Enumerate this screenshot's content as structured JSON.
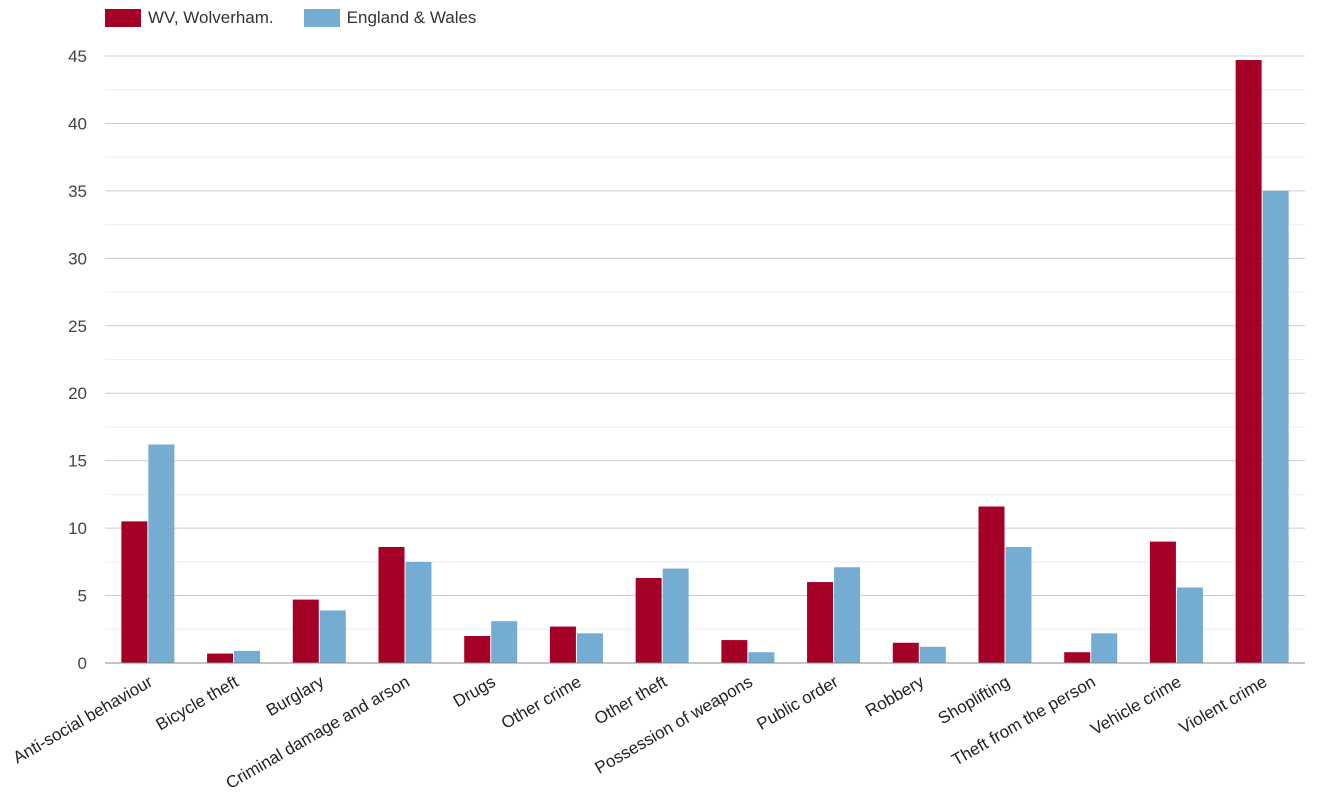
{
  "chart_data": {
    "type": "bar",
    "categories": [
      "Anti-social behaviour",
      "Bicycle theft",
      "Burglary",
      "Criminal damage and arson",
      "Drugs",
      "Other crime",
      "Other theft",
      "Possession of weapons",
      "Public order",
      "Robbery",
      "Shoplifting",
      "Theft from the person",
      "Vehicle crime",
      "Violent crime"
    ],
    "series": [
      {
        "name": "WV, Wolverham.",
        "color": "#a50026",
        "values": [
          10.5,
          0.7,
          4.7,
          8.6,
          2.0,
          2.7,
          6.3,
          1.7,
          6.0,
          1.5,
          11.6,
          0.8,
          9.0,
          44.7
        ]
      },
      {
        "name": "England & Wales",
        "color": "#74add1",
        "values": [
          16.2,
          0.9,
          3.9,
          7.5,
          3.1,
          2.2,
          7.0,
          0.8,
          7.1,
          1.2,
          8.6,
          2.2,
          5.6,
          35.0
        ]
      }
    ],
    "ylim": [
      0,
      45
    ],
    "yticks": [
      0,
      5,
      10,
      15,
      20,
      25,
      30,
      35,
      40,
      45
    ],
    "ytick_labels": [
      "0",
      "5",
      "10",
      "15",
      "20",
      "25",
      "30",
      "35",
      "40",
      "45"
    ],
    "grid": true,
    "legend": "top-left",
    "xlabel": "",
    "ylabel": "",
    "title": ""
  }
}
